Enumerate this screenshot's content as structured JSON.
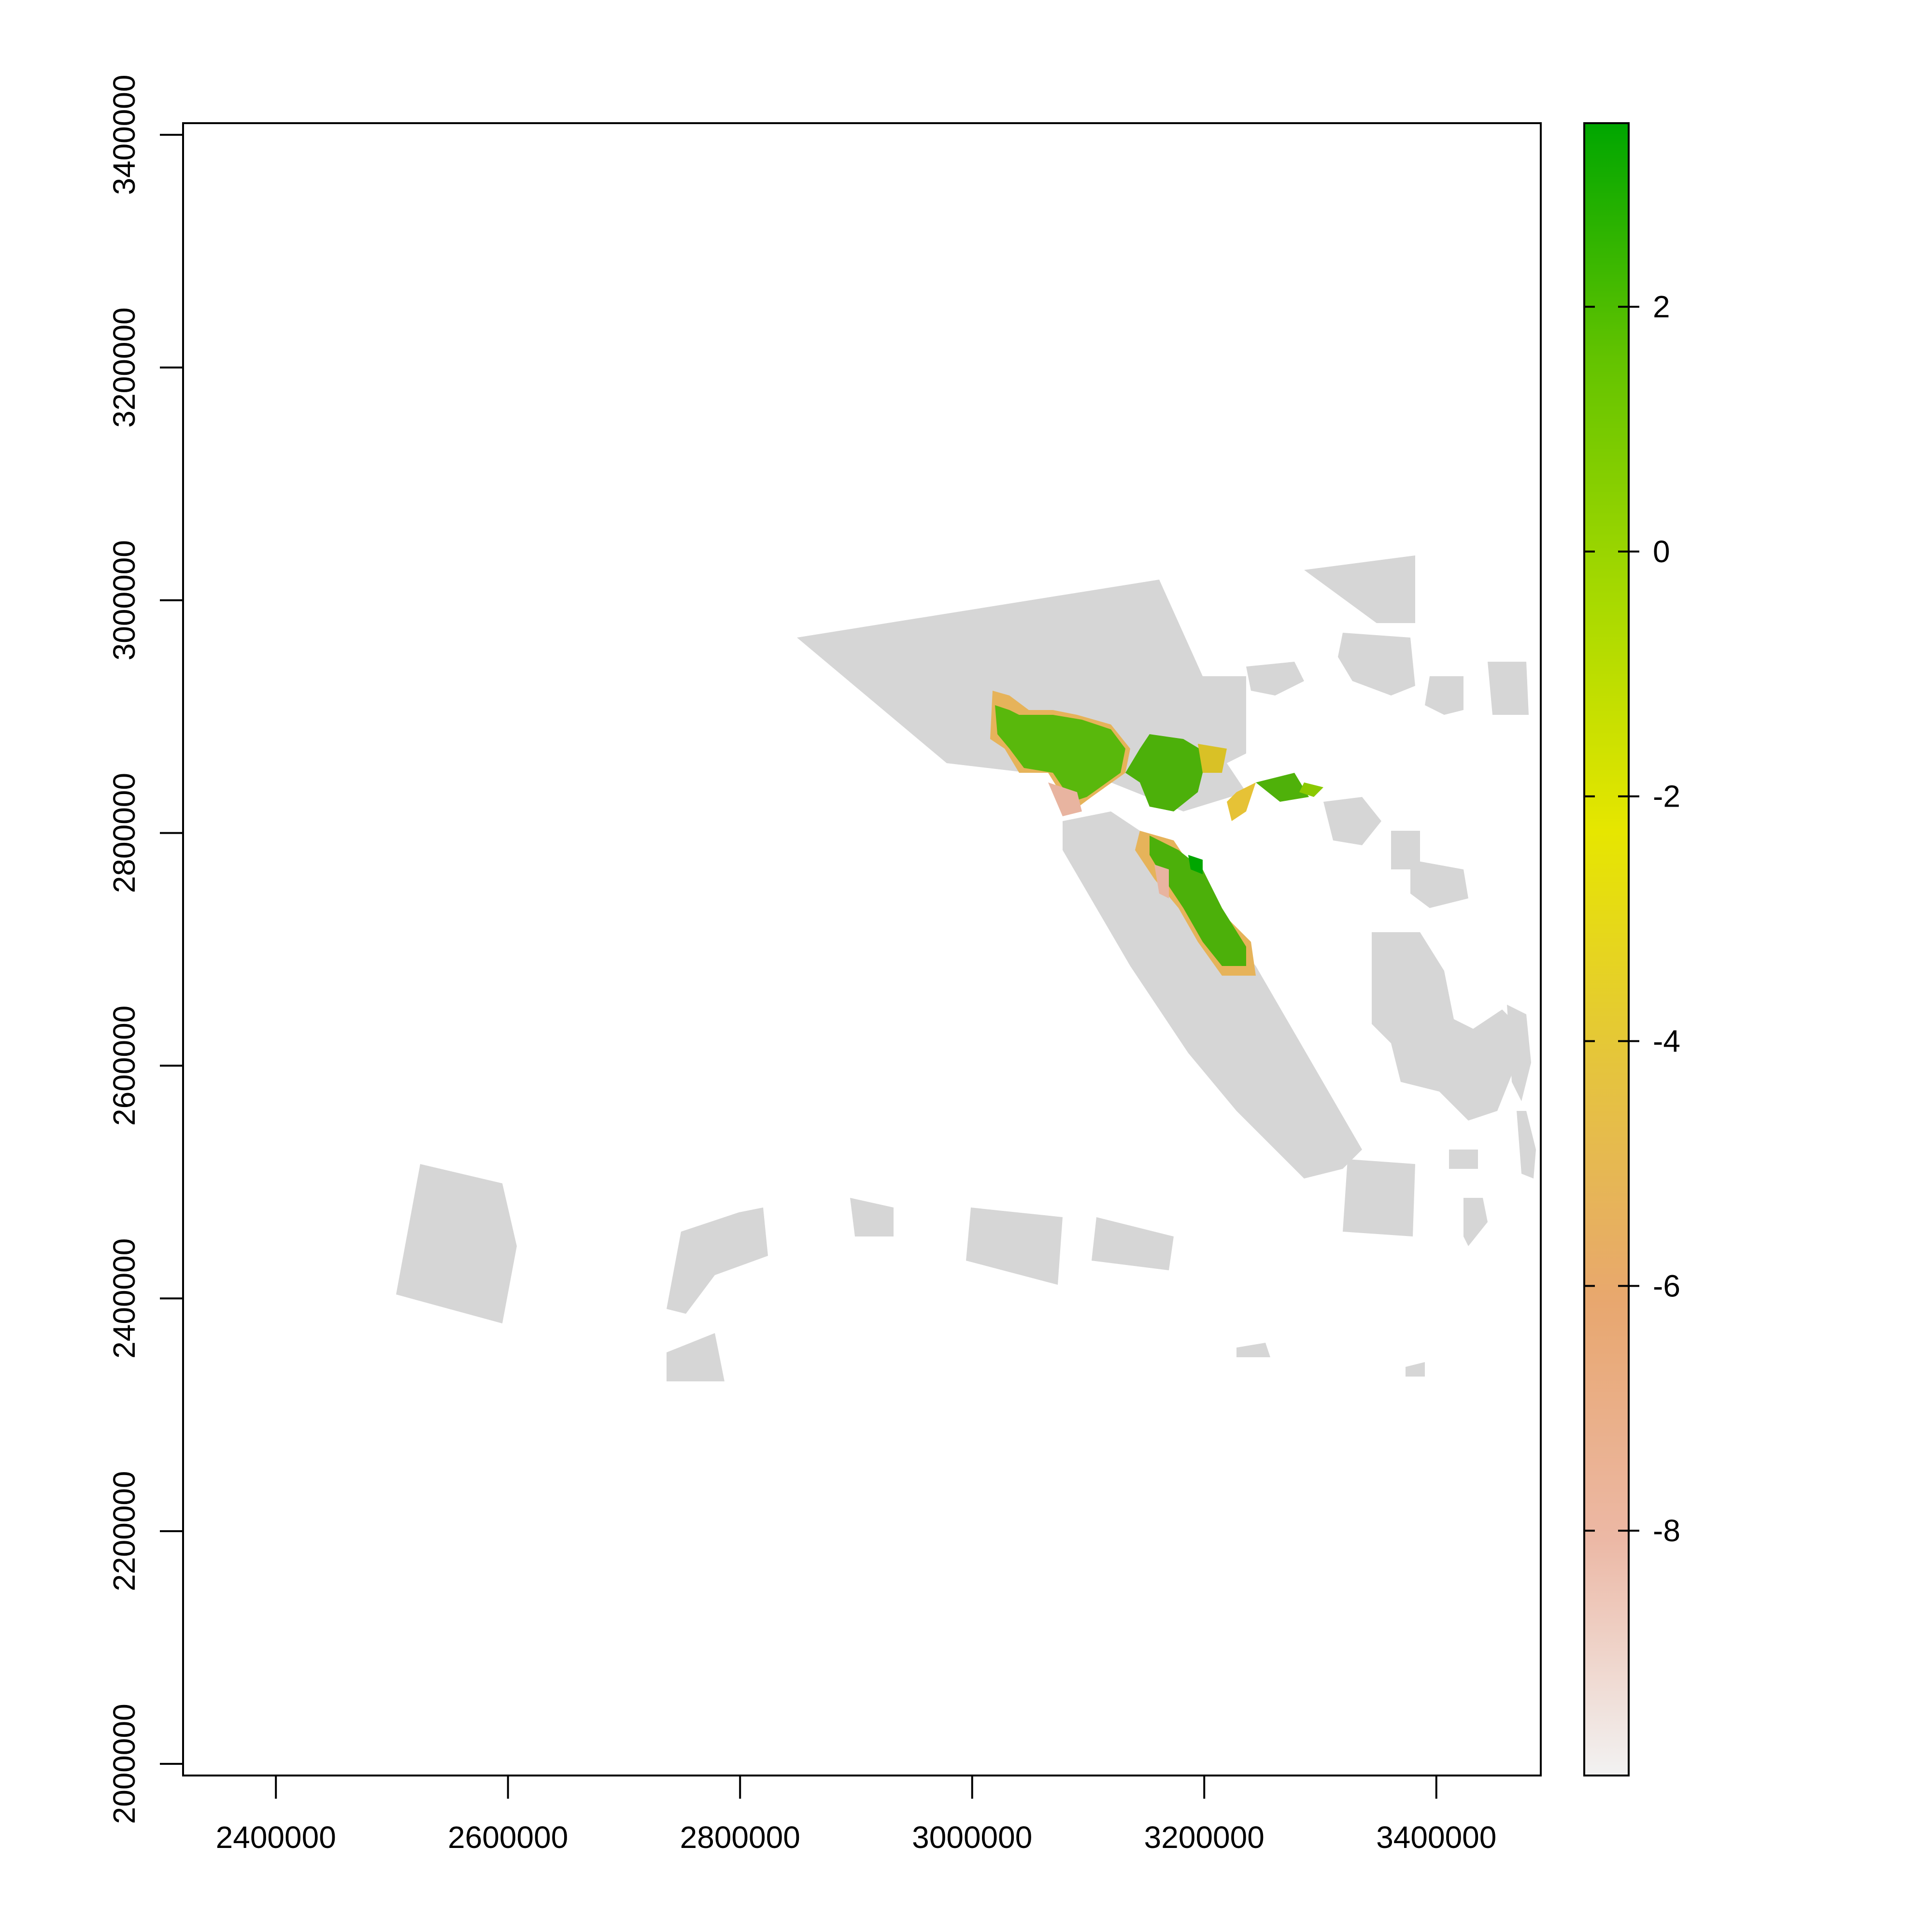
{
  "map": {
    "x_axis": {
      "range": [
        2320000,
        3490000
      ],
      "ticks": [
        2400000,
        2600000,
        2800000,
        3000000,
        3200000,
        3400000
      ],
      "labels": [
        "2400000",
        "2600000",
        "2800000",
        "3000000",
        "3200000",
        "3400000"
      ]
    },
    "y_axis": {
      "range": [
        1990000,
        3410000
      ],
      "ticks": [
        2000000,
        2200000,
        2400000,
        2600000,
        2800000,
        3000000,
        3200000,
        3400000
      ],
      "labels": [
        "2000000",
        "2200000",
        "2400000",
        "2600000",
        "2800000",
        "3000000",
        "3200000",
        "3400000"
      ]
    },
    "legend": {
      "placement": "right",
      "range": [
        -10,
        3.5
      ],
      "ticks": [
        2,
        0,
        -2,
        -4,
        -6,
        -8
      ],
      "labels": [
        "2",
        "0",
        "-2",
        "-4",
        "-6",
        "-8"
      ],
      "colors": [
        "#f2f2f2",
        "#ecb8a5",
        "#e8a76f",
        "#e5c43d",
        "#e6e600",
        "#a6d900",
        "#63c300",
        "#00a600"
      ]
    },
    "nodata_color": "#d6d6d6"
  }
}
